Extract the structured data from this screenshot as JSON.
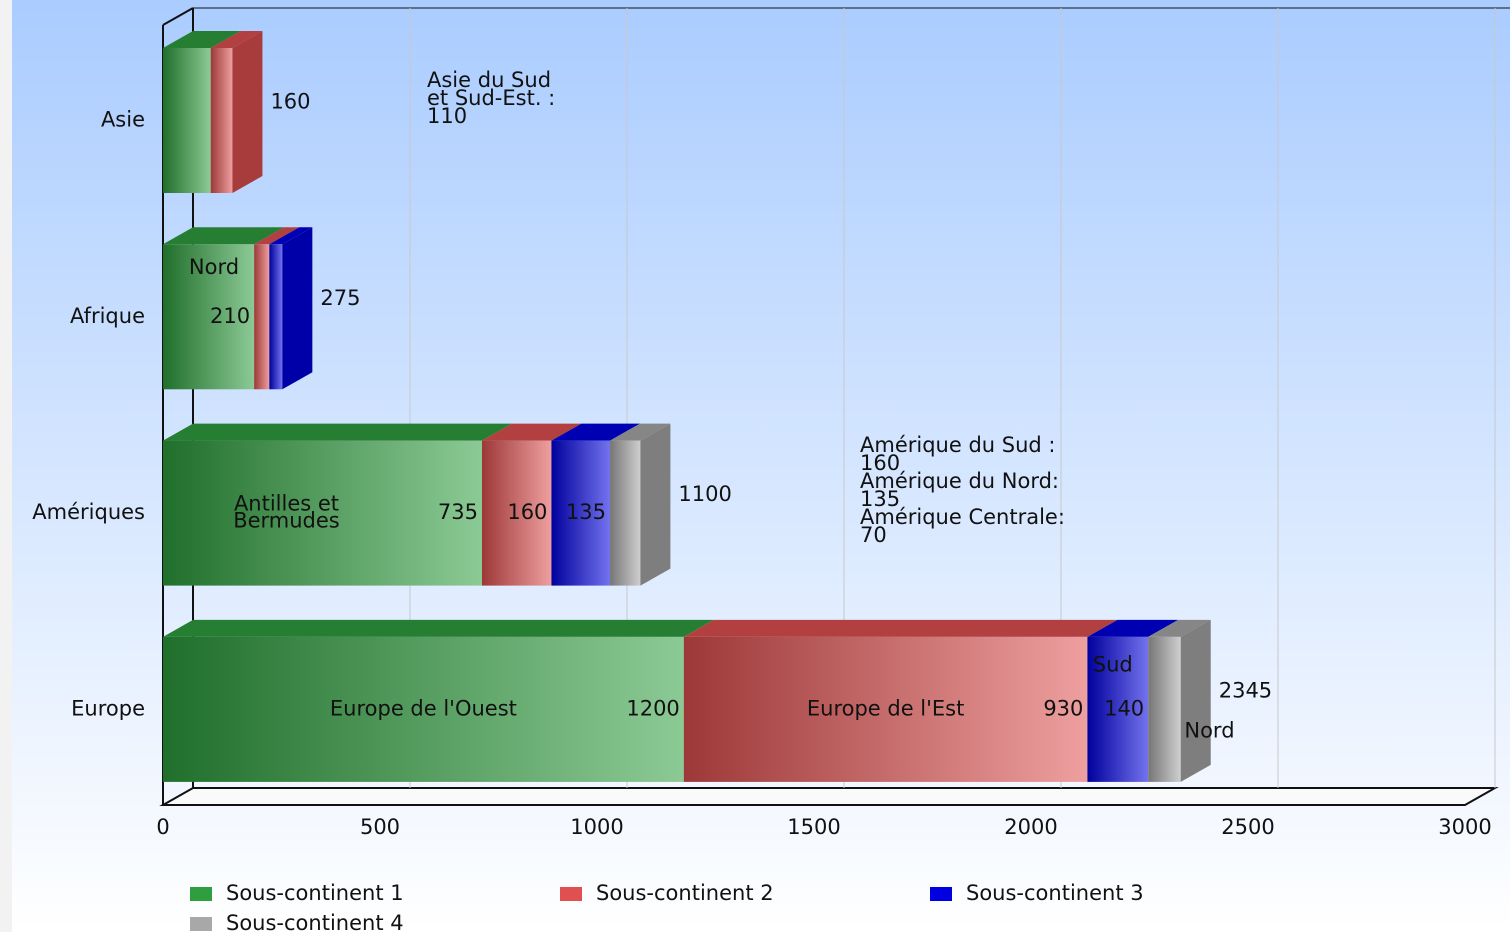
{
  "chart_data": {
    "type": "stacked_bar_3d",
    "categories": [
      "Asie",
      "Afrique",
      "Amériques",
      "Europe"
    ],
    "series": [
      {
        "name": "Sous-continent 1",
        "color": "#2e9e3e",
        "values": [
          110,
          210,
          735,
          1200
        ],
        "value_labels": [
          null,
          "210",
          "735",
          "1200"
        ],
        "segment_labels": [
          null,
          "Nord",
          [
            "Antilles et",
            "Bermudes"
          ],
          "Europe de l'Ouest"
        ]
      },
      {
        "name": "Sous-continent 2",
        "color": "#e05050",
        "values": [
          50,
          35,
          160,
          930
        ],
        "value_labels": [
          null,
          null,
          "160",
          "930"
        ],
        "segment_labels": [
          null,
          null,
          null,
          "Europe de l'Est"
        ]
      },
      {
        "name": "Sous-continent 3",
        "color": "#0000e0",
        "values": [
          0,
          30,
          135,
          140
        ],
        "value_labels": [
          null,
          null,
          "135",
          "140"
        ],
        "segment_labels": [
          null,
          null,
          null,
          "Sud"
        ]
      },
      {
        "name": "Sous-continent 4",
        "color": "#a8a8a8",
        "values": [
          0,
          0,
          70,
          75
        ],
        "value_labels": [
          null,
          null,
          null,
          null
        ],
        "segment_labels": [
          null,
          null,
          null,
          "Nord"
        ]
      }
    ],
    "totals": [
      160,
      275,
      1100,
      2345
    ],
    "annotations": [
      [
        "Asie du Sud",
        "et Sud-Est.  :",
        "110"
      ],
      [
        "Amérique du Sud :",
        "160",
        "Amérique du Nord:",
        "135",
        "Amérique Centrale:",
        "70"
      ]
    ],
    "xlim": [
      0,
      3000
    ],
    "xticks": [
      0,
      500,
      1000,
      1500,
      2000,
      2500,
      3000
    ],
    "grid": true,
    "legend": "bottom"
  }
}
